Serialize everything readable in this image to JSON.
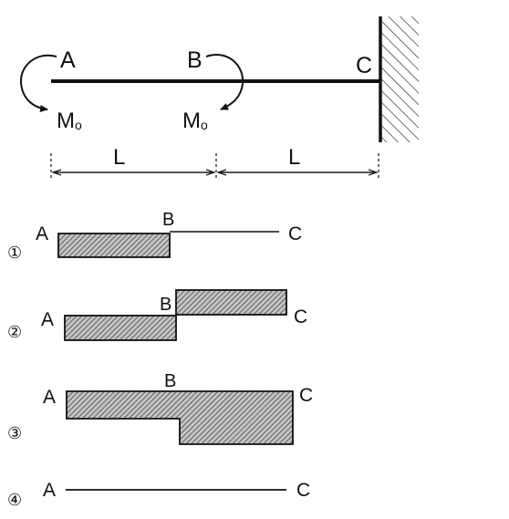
{
  "beam": {
    "label_a": "A",
    "label_b": "B",
    "label_c": "C",
    "moment_a": "M",
    "moment_a_sub": "o",
    "moment_b": "M",
    "moment_b_sub": "o",
    "span_1": "L",
    "span_2": "L",
    "support": "fixed wall at C"
  },
  "options": [
    {
      "number": "①",
      "label_a": "A",
      "label_b": "B",
      "label_c": "C",
      "diagram": "negative rectangle A–B, zero B–C"
    },
    {
      "number": "②",
      "label_a": "A",
      "label_b": "B",
      "label_c": "C",
      "diagram": "negative rectangle A–B, positive rectangle B–C"
    },
    {
      "number": "③",
      "label_a": "A",
      "label_b": "B",
      "label_c": "C",
      "diagram": "negative A–B, doubled negative B–C"
    },
    {
      "number": "④",
      "label_a": "A",
      "label_c": "C",
      "diagram": "zero along A–C"
    }
  ],
  "colors": {
    "ink": "#111111",
    "hatch_fill": "#bdbdbd"
  }
}
